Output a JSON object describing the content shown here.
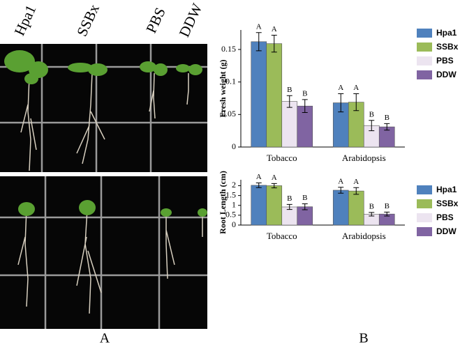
{
  "photo_labels": [
    "Hpa1",
    "SSBx",
    "PBS",
    "DDW"
  ],
  "panel_labels": {
    "a": "A",
    "b": "B"
  },
  "chart_data": [
    {
      "type": "bar",
      "ylabel": "Fresh weight (g)",
      "categories": [
        "Tobacco",
        "Arabidopsis"
      ],
      "ylim": [
        0,
        0.18
      ],
      "yticks": [
        0,
        0.05,
        0.1,
        0.15
      ],
      "series": [
        {
          "name": "Hpa1",
          "color": "#4f81bd",
          "values": [
            0.162,
            0.068
          ],
          "errors": [
            0.014,
            0.014
          ],
          "letters": [
            "A",
            "A"
          ]
        },
        {
          "name": "SSBx",
          "color": "#9bbb59",
          "values": [
            0.159,
            0.069
          ],
          "errors": [
            0.013,
            0.013
          ],
          "letters": [
            "A",
            "A"
          ]
        },
        {
          "name": "PBS",
          "color": "#ece4f0",
          "values": [
            0.07,
            0.033
          ],
          "errors": [
            0.009,
            0.008
          ],
          "letters": [
            "B",
            "B"
          ]
        },
        {
          "name": "DDW",
          "color": "#8064a2",
          "values": [
            0.063,
            0.031
          ],
          "errors": [
            0.01,
            0.005
          ],
          "letters": [
            "B",
            "B"
          ]
        }
      ]
    },
    {
      "type": "bar",
      "ylabel": "Root Length (cm)",
      "categories": [
        "Tobacco",
        "Arabidopsis"
      ],
      "ylim": [
        0,
        2.3
      ],
      "yticks": [
        0,
        0.5,
        1,
        1.5,
        2
      ],
      "series": [
        {
          "name": "Hpa1",
          "color": "#4f81bd",
          "values": [
            2.02,
            1.77
          ],
          "errors": [
            0.12,
            0.15
          ],
          "letters": [
            "A",
            "A"
          ]
        },
        {
          "name": "SSBx",
          "color": "#9bbb59",
          "values": [
            2.0,
            1.73
          ],
          "errors": [
            0.11,
            0.17
          ],
          "letters": [
            "A",
            "A"
          ]
        },
        {
          "name": "PBS",
          "color": "#ece4f0",
          "values": [
            0.92,
            0.55
          ],
          "errors": [
            0.13,
            0.09
          ],
          "letters": [
            "B",
            "B"
          ]
        },
        {
          "name": "DDW",
          "color": "#8064a2",
          "values": [
            0.93,
            0.56
          ],
          "errors": [
            0.15,
            0.1
          ],
          "letters": [
            "B",
            "B"
          ]
        }
      ]
    }
  ]
}
